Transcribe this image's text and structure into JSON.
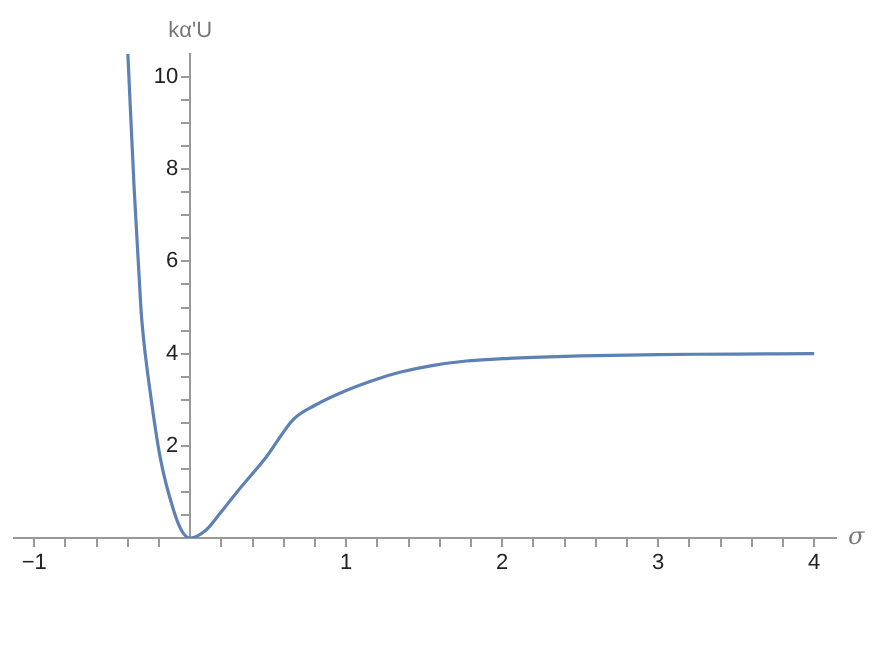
{
  "chart_data": {
    "type": "line",
    "xlabel": "σ",
    "ylabel": "kα'U",
    "series": [
      {
        "color": "#5e81b5",
        "x": [
          -0.4,
          -0.36,
          -0.32,
          -0.31,
          -0.25,
          -0.19,
          -0.1,
          -0.05,
          0,
          0.1,
          0.19,
          0.3,
          0.49,
          0.66,
          0.8,
          1.0,
          1.2,
          1.35,
          1.55,
          1.77,
          2.0,
          2.2,
          2.5,
          3.0,
          3.5,
          4.0
        ],
        "values": [
          10.5,
          7.6,
          5.2,
          4.7,
          3.0,
          1.7,
          0.53,
          0.13,
          0,
          0.17,
          0.53,
          1.0,
          1.77,
          2.57,
          2.88,
          3.2,
          3.45,
          3.6,
          3.74,
          3.84,
          3.89,
          3.92,
          3.95,
          3.98,
          3.99,
          4.0
        ]
      }
    ],
    "xlim": [
      -1.13,
      4.14
    ],
    "ylim": [
      0,
      10.5
    ],
    "xticks": [
      {
        "value": -1,
        "label": "−1"
      },
      {
        "value": -0.8,
        "label": null
      },
      {
        "value": -0.6,
        "label": null
      },
      {
        "value": -0.4,
        "label": null
      },
      {
        "value": -0.2,
        "label": null
      },
      {
        "value": 0.2,
        "label": null
      },
      {
        "value": 0.4,
        "label": null
      },
      {
        "value": 0.6,
        "label": null
      },
      {
        "value": 0.8,
        "label": null
      },
      1,
      {
        "value": 1.2,
        "label": null
      },
      {
        "value": 1.4,
        "label": null
      },
      {
        "value": 1.6,
        "label": null
      },
      {
        "value": 1.8,
        "label": null
      },
      2,
      {
        "value": 2.2,
        "label": null
      },
      {
        "value": 2.4,
        "label": null
      },
      {
        "value": 2.6,
        "label": null
      },
      {
        "value": 2.8,
        "label": null
      },
      3,
      {
        "value": 3.2,
        "label": null
      },
      {
        "value": 3.4,
        "label": null
      },
      {
        "value": 3.6,
        "label": null
      },
      {
        "value": 3.8,
        "label": null
      },
      4
    ],
    "yticks": [
      {
        "value": 0.5,
        "label": null
      },
      {
        "value": 1,
        "label": null
      },
      {
        "value": 1.5,
        "label": null
      },
      2,
      {
        "value": 2.5,
        "label": null
      },
      {
        "value": 3,
        "label": null
      },
      {
        "value": 3.5,
        "label": null
      },
      4,
      {
        "value": 4.5,
        "label": null
      },
      {
        "value": 5,
        "label": null
      },
      {
        "value": 5.5,
        "label": null
      },
      6,
      {
        "value": 6.5,
        "label": null
      },
      {
        "value": 7,
        "label": null
      },
      {
        "value": 7.5,
        "label": null
      },
      8,
      {
        "value": 8.5,
        "label": null
      },
      {
        "value": 9,
        "label": null
      },
      {
        "value": 9.5,
        "label": null
      },
      10
    ],
    "grid": false,
    "legend": false,
    "marker": "none",
    "line_style": "solid"
  }
}
